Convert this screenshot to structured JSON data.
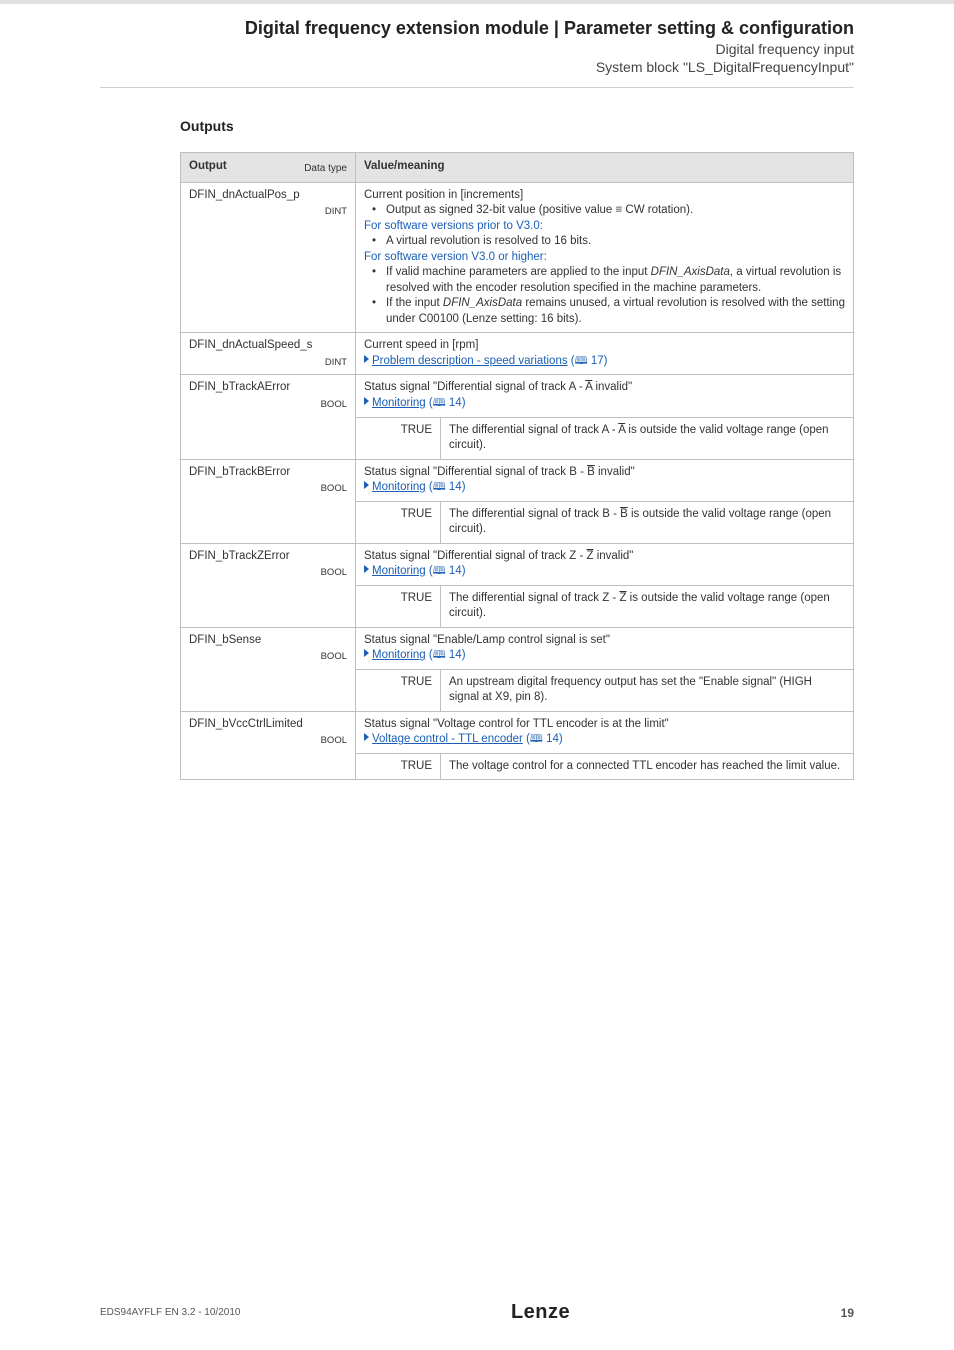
{
  "header": {
    "title": "Digital frequency extension module | Parameter setting & configuration",
    "sub1": "Digital frequency input",
    "sub2": "System block \"LS_DigitalFrequencyInput\""
  },
  "section_heading": "Outputs",
  "table": {
    "head_output": "Output",
    "head_datatype": "Data type",
    "head_value": "Value/meaning",
    "rows": [
      {
        "name": "DFIN_dnActualPos_p",
        "dtype": "DINT",
        "kind": "full",
        "desc_line1": "Current position in [increments]",
        "bullets1": [
          "Output as signed 32-bit value (positive value ≡ CW rotation)."
        ],
        "blue1": "For software versions prior to V3.0:",
        "bullets2": [
          "A virtual revolution is resolved to 16 bits."
        ],
        "blue2": "For software version V3.0 or higher:",
        "bullets3_a_pre": "If valid machine parameters are applied to the input ",
        "bullets3_a_em": "DFIN_AxisData",
        "bullets3_a_post": ", a virtual revolution is resolved with the encoder resolution specified in the machine parameters.",
        "bullets3_b_pre": "If the input ",
        "bullets3_b_em": "DFIN_AxisData",
        "bullets3_b_post": " remains unused, a virtual revolution is resolved with the setting under C00100 (Lenze setting: 16 bits)."
      },
      {
        "name": "DFIN_dnActualSpeed_s",
        "dtype": "DINT",
        "kind": "simple",
        "desc": "Current speed in [rpm]",
        "link_text": "Problem description - speed variations",
        "link_ref": "17"
      },
      {
        "name": "DFIN_bTrackAError",
        "dtype": "BOOL",
        "kind": "track",
        "desc_pre": "Status signal \"Differential signal of track A - ",
        "desc_over": "A",
        "desc_post": " invalid\"",
        "link_text": "Monitoring",
        "link_ref": "14",
        "true_label": "TRUE",
        "true_pre": "The differential signal of track A - ",
        "true_over": "A",
        "true_post": " is outside the valid voltage range (open circuit)."
      },
      {
        "name": "DFIN_bTrackBError",
        "dtype": "BOOL",
        "kind": "track",
        "desc_pre": "Status signal \"Differential signal of track B - ",
        "desc_over": "B",
        "desc_post": " invalid\"",
        "link_text": "Monitoring",
        "link_ref": "14",
        "true_label": "TRUE",
        "true_pre": "The differential signal of track B - ",
        "true_over": "B",
        "true_post": " is outside the valid voltage range (open circuit)."
      },
      {
        "name": "DFIN_bTrackZError",
        "dtype": "BOOL",
        "kind": "track",
        "desc_pre": "Status signal \"Differential signal of track Z - ",
        "desc_over": "Z",
        "desc_post": " invalid\"",
        "link_text": "Monitoring",
        "link_ref": "14",
        "true_label": "TRUE",
        "true_pre": "The differential signal of track Z - ",
        "true_over": "Z",
        "true_post": " is outside the valid voltage range (open circuit)."
      },
      {
        "name": "DFIN_bSense",
        "dtype": "BOOL",
        "kind": "status",
        "desc": "Status signal \"Enable/Lamp control signal is set\"",
        "link_text": "Monitoring",
        "link_ref": "14",
        "true_label": "TRUE",
        "true_text": "An upstream digital frequency output has set the \"Enable signal\" (HIGH signal at X9, pin 8)."
      },
      {
        "name": "DFIN_bVccCtrlLimited",
        "dtype": "BOOL",
        "kind": "status",
        "desc": "Status signal \"Voltage control for TTL encoder is at the limit\"",
        "link_text": "Voltage control - TTL encoder",
        "link_ref": "14",
        "true_label": "TRUE",
        "true_text": "The voltage control for a connected TTL encoder has reached the limit value."
      }
    ]
  },
  "footer": {
    "doc_id": "EDS94AYFLF EN 3.2 - 10/2010",
    "logo": "Lenze",
    "page": "19"
  },
  "colors": {
    "link": "#1a5fb4",
    "border": "#bfbfbf",
    "header_bg": "#e3e3e3"
  }
}
